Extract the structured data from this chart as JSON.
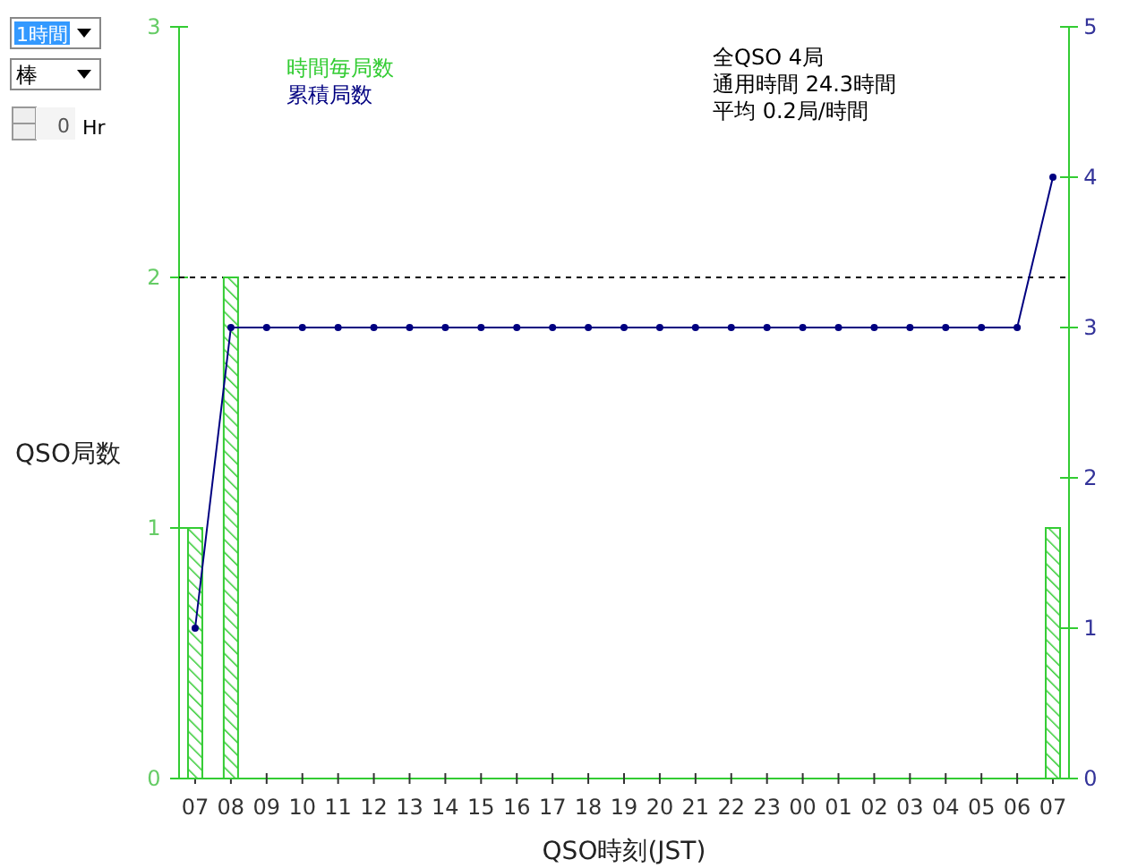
{
  "chart_data": {
    "type": "bar",
    "categories": [
      "07",
      "08",
      "09",
      "10",
      "11",
      "12",
      "13",
      "14",
      "15",
      "16",
      "17",
      "18",
      "19",
      "20",
      "21",
      "22",
      "23",
      "00",
      "01",
      "02",
      "03",
      "04",
      "05",
      "06",
      "07"
    ],
    "series": [
      {
        "name": "時間毎局数",
        "color": "#33cc33",
        "values": [
          1,
          2,
          0,
          0,
          0,
          0,
          0,
          0,
          0,
          0,
          0,
          0,
          0,
          0,
          0,
          0,
          0,
          0,
          0,
          0,
          0,
          0,
          0,
          0,
          1
        ]
      },
      {
        "name": "累積局数",
        "type": "line",
        "axis": "y2",
        "color": "#000080",
        "values": [
          1,
          3,
          3,
          3,
          3,
          3,
          3,
          3,
          3,
          3,
          3,
          3,
          3,
          3,
          3,
          3,
          3,
          3,
          3,
          3,
          3,
          3,
          3,
          3,
          4
        ]
      }
    ],
    "ylim": [
      0,
      3
    ],
    "yticks": [
      0,
      1,
      2,
      3
    ],
    "y2lim": [
      0,
      5
    ],
    "y2ticks": [
      0,
      1,
      2,
      3,
      4,
      5
    ],
    "ylabel": "QSO局数",
    "xlabel": "QSO時刻(JST)",
    "ref_lines": [
      {
        "axis": "y",
        "value": 2,
        "color": "#000000",
        "line_style": "dashed"
      }
    ],
    "marker": "circle",
    "legend": "top left",
    "annotations": [
      "全QSO 4局",
      "通用時間 24.3時間",
      "平均 0.2局/時間",
      "1時間",
      "棒",
      "0",
      "Hr"
    ]
  }
}
